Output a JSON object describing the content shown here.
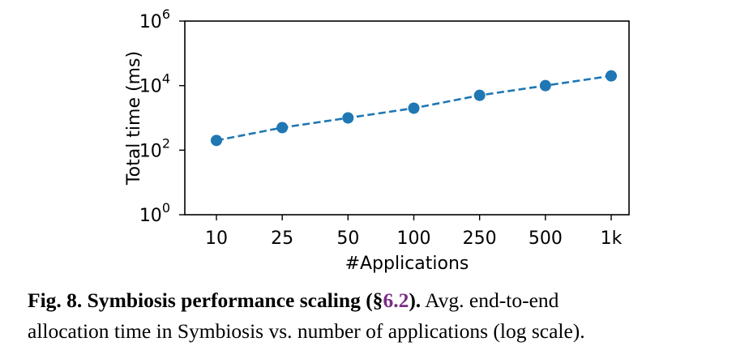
{
  "chart_data": {
    "type": "line",
    "categories": [
      "10",
      "25",
      "50",
      "100",
      "250",
      "500",
      "1k"
    ],
    "series": [
      {
        "name": "Total time",
        "values": [
          200,
          500,
          1000,
          2000,
          5000,
          10000,
          20000
        ],
        "line_style": "dashed",
        "marker": "circle",
        "color": "#1f77b4"
      }
    ],
    "xlabel": "#Applications",
    "ylabel": "Total time (ms)",
    "yscale": "log",
    "ylim": [
      1,
      1000000
    ],
    "yticks": [
      {
        "value": 1,
        "base": "10",
        "exp": "0"
      },
      {
        "value": 100,
        "base": "10",
        "exp": "2"
      },
      {
        "value": 10000,
        "base": "10",
        "exp": "4"
      },
      {
        "value": 1000000,
        "base": "10",
        "exp": "6"
      }
    ],
    "grid": false,
    "legend": "none"
  },
  "caption": {
    "label": "Fig. 8. Symbiosis performance scaling (§",
    "ref": "6.2",
    "label_end": ").",
    "text_line1": " Avg. end-to-end",
    "text_line2": "allocation time in Symbiosis vs. number of applications (log scale)."
  }
}
